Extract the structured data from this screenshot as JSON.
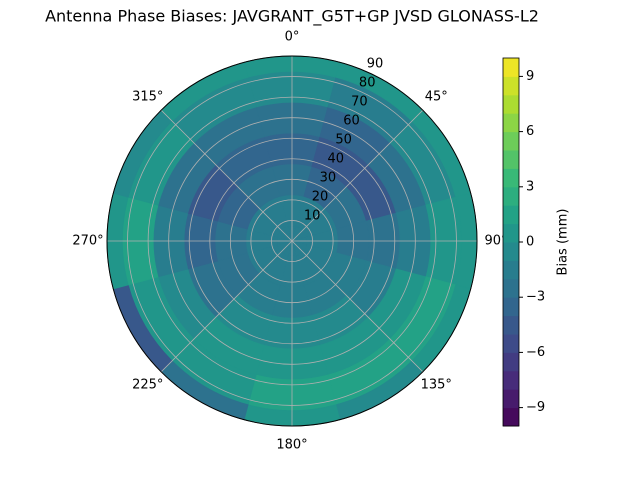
{
  "chart_data": {
    "type": "polar-contour",
    "title": "Antenna Phase Biases: JAVGRANT_G5T+GP JVSD GLONASS-L2",
    "azimuth": [
      0,
      30,
      60,
      90,
      120,
      150,
      180,
      210,
      240,
      270,
      300,
      330
    ],
    "r": [
      0,
      15,
      30,
      45,
      60,
      75,
      90
    ],
    "z": [
      [
        -2,
        -2,
        -3,
        -4,
        -3,
        -1,
        0
      ],
      [
        -2,
        -2,
        -4,
        -5,
        -4,
        -2,
        0
      ],
      [
        -2,
        -2,
        -3,
        -5,
        -3,
        -1,
        0
      ],
      [
        -2,
        -2,
        -3,
        -3,
        -2,
        0,
        0
      ],
      [
        -2,
        -2,
        -2,
        -2,
        0,
        1,
        0
      ],
      [
        -2,
        -2,
        -2,
        -1,
        0,
        1,
        -1
      ],
      [
        -2,
        -2,
        -2,
        -1,
        0,
        1,
        0
      ],
      [
        -2,
        -2,
        -2,
        -1,
        0,
        0,
        -3
      ],
      [
        -2,
        -2,
        -3,
        -3,
        -1,
        0,
        -5
      ],
      [
        -2,
        -2,
        -3,
        -4,
        -2,
        1,
        0
      ],
      [
        -2,
        -2,
        -4,
        -5,
        -3,
        0,
        -1
      ],
      [
        -2,
        -2,
        -3,
        -4,
        -3,
        -1,
        0
      ]
    ],
    "rlim": [
      0,
      90
    ],
    "rticks": [
      10,
      20,
      30,
      40,
      50,
      60,
      70,
      80,
      90
    ],
    "thetaticks": [
      {
        "value": 0,
        "label": "0°"
      },
      {
        "value": 45,
        "label": "45°"
      },
      {
        "value": 90,
        "label": "90°"
      },
      {
        "value": 135,
        "label": "135°"
      },
      {
        "value": 180,
        "label": "180°"
      },
      {
        "value": 225,
        "label": "225°"
      },
      {
        "value": 270,
        "label": "270°"
      },
      {
        "value": 315,
        "label": "315°"
      }
    ],
    "colormap": "viridis",
    "clim": [
      -10,
      10
    ],
    "cticks": [
      {
        "value": -9,
        "label": "−9"
      },
      {
        "value": -6,
        "label": "−6"
      },
      {
        "value": -3,
        "label": "−3"
      },
      0,
      3,
      6,
      9
    ],
    "colorbar_label": "Bias (mm)",
    "grid": true
  }
}
